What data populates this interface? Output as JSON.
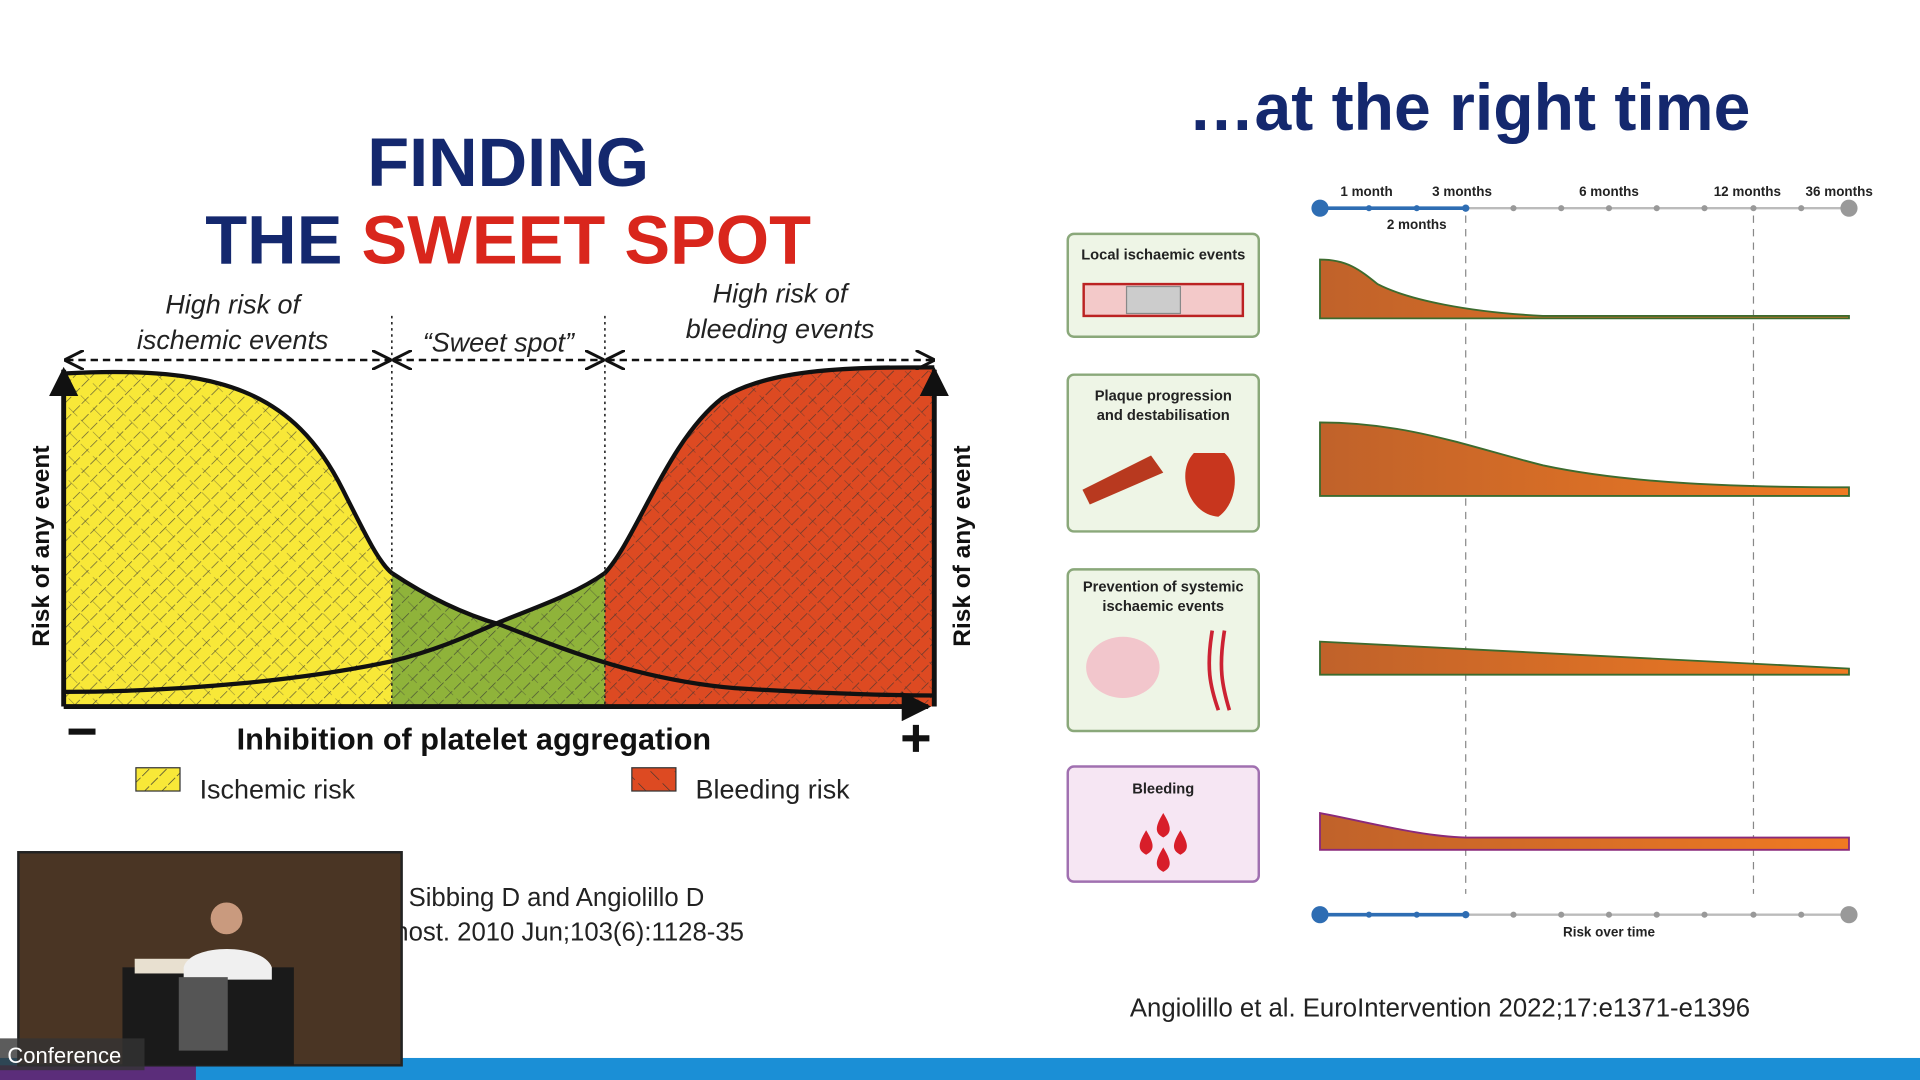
{
  "left": {
    "title_line1": "FINDING",
    "title_line2_a": "THE",
    "title_line2_b": "SWEET SPOT",
    "regions": [
      [
        "High risk of",
        "ischemic events"
      ],
      [
        "“Sweet spot”"
      ],
      [
        "High risk of",
        "bleeding events"
      ]
    ],
    "y_axis_label": "Risk of any event",
    "y2_axis_label": "Risk of any event",
    "x_axis_label": "Inhibition of platelet aggregation",
    "legend": [
      "Ischemic risk",
      "Bleeding risk"
    ],
    "citation": [
      ", Sibbing D and Angiolillo D",
      "nost. 2010 Jun;103(6):1128-35"
    ]
  },
  "right": {
    "title": "…at the right time",
    "timeline_labels": [
      "1 month",
      "3 months",
      "6 months",
      "12 months",
      "36 months"
    ],
    "timeline_sublabel": "2 months",
    "panels": [
      [
        "Local ischaemic events"
      ],
      [
        "Plaque progression",
        "and destabilisation"
      ],
      [
        "Prevention of systemic",
        "ischaemic events"
      ],
      [
        "Bleeding"
      ]
    ],
    "bottom_axis_label": "Risk over time",
    "citation": "Angiolillo et al. EuroIntervention 2022;17:e1371-e1396"
  },
  "video": {
    "label": "Conference"
  }
}
